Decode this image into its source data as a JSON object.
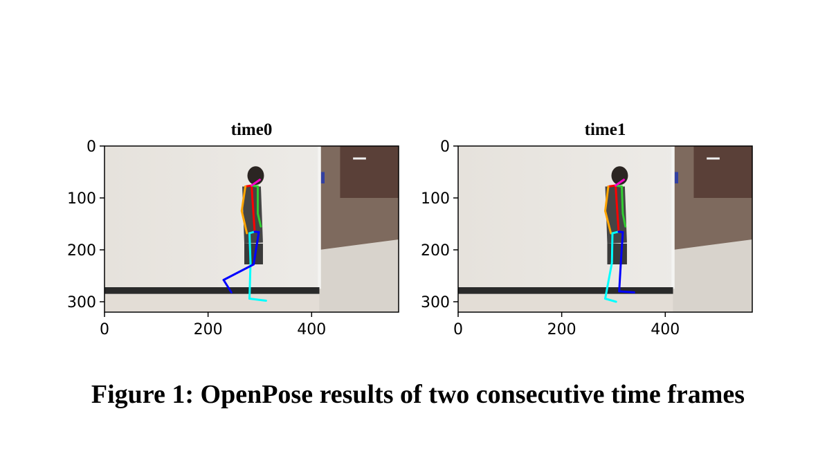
{
  "caption": "Figure 1: OpenPose results of two consecutive time frames",
  "chart_data": [
    {
      "type": "image",
      "title": "time0",
      "xlim": [
        0,
        568
      ],
      "ylim": [
        320,
        0
      ],
      "xticks": [
        0,
        200,
        400
      ],
      "yticks": [
        0,
        100,
        200,
        300
      ],
      "image_size": [
        568,
        320
      ],
      "skeleton_color": {
        "torso": "#ff0000",
        "right_arm": "#ffa500",
        "left_arm": "#32cd32",
        "right_leg": "#00ffff",
        "left_leg": "#0000ff",
        "face": "#ff00c8"
      },
      "keypoints": {
        "nose": [
          300,
          65
        ],
        "neck": [
          284,
          76
        ],
        "r_shoulder": [
          272,
          78
        ],
        "r_elbow": [
          265,
          125
        ],
        "r_wrist": [
          275,
          168
        ],
        "l_shoulder": [
          296,
          78
        ],
        "l_elbow": [
          296,
          130
        ],
        "l_wrist": [
          302,
          155
        ],
        "mid_hip": [
          290,
          165
        ],
        "r_hip": [
          280,
          168
        ],
        "r_knee": [
          282,
          225
        ],
        "r_ankle": [
          280,
          294
        ],
        "r_toe": [
          312,
          298
        ],
        "l_hip": [
          298,
          166
        ],
        "l_knee": [
          288,
          228
        ],
        "l_ankle": [
          230,
          258
        ],
        "l_toe": [
          245,
          282
        ]
      }
    },
    {
      "type": "image",
      "title": "time1",
      "xlim": [
        0,
        568
      ],
      "ylim": [
        320,
        0
      ],
      "xticks": [
        0,
        200,
        400
      ],
      "yticks": [
        0,
        100,
        200,
        300
      ],
      "image_size": [
        568,
        320
      ],
      "skeleton_color": {
        "torso": "#ff0000",
        "right_arm": "#ffa500",
        "left_arm": "#32cd32",
        "right_leg": "#00ffff",
        "left_leg": "#0000ff",
        "face": "#ff00c8"
      },
      "keypoints": {
        "nose": [
          320,
          65
        ],
        "neck": [
          304,
          76
        ],
        "r_shoulder": [
          290,
          78
        ],
        "r_elbow": [
          284,
          125
        ],
        "r_wrist": [
          295,
          168
        ],
        "l_shoulder": [
          316,
          78
        ],
        "l_elbow": [
          318,
          130
        ],
        "l_wrist": [
          323,
          155
        ],
        "mid_hip": [
          310,
          165
        ],
        "r_hip": [
          298,
          168
        ],
        "r_knee": [
          297,
          225
        ],
        "r_ankle": [
          284,
          294
        ],
        "r_toe": [
          305,
          300
        ],
        "l_hip": [
          318,
          166
        ],
        "l_knee": [
          314,
          228
        ],
        "l_ankle": [
          311,
          280
        ],
        "l_toe": [
          340,
          282
        ]
      }
    }
  ]
}
